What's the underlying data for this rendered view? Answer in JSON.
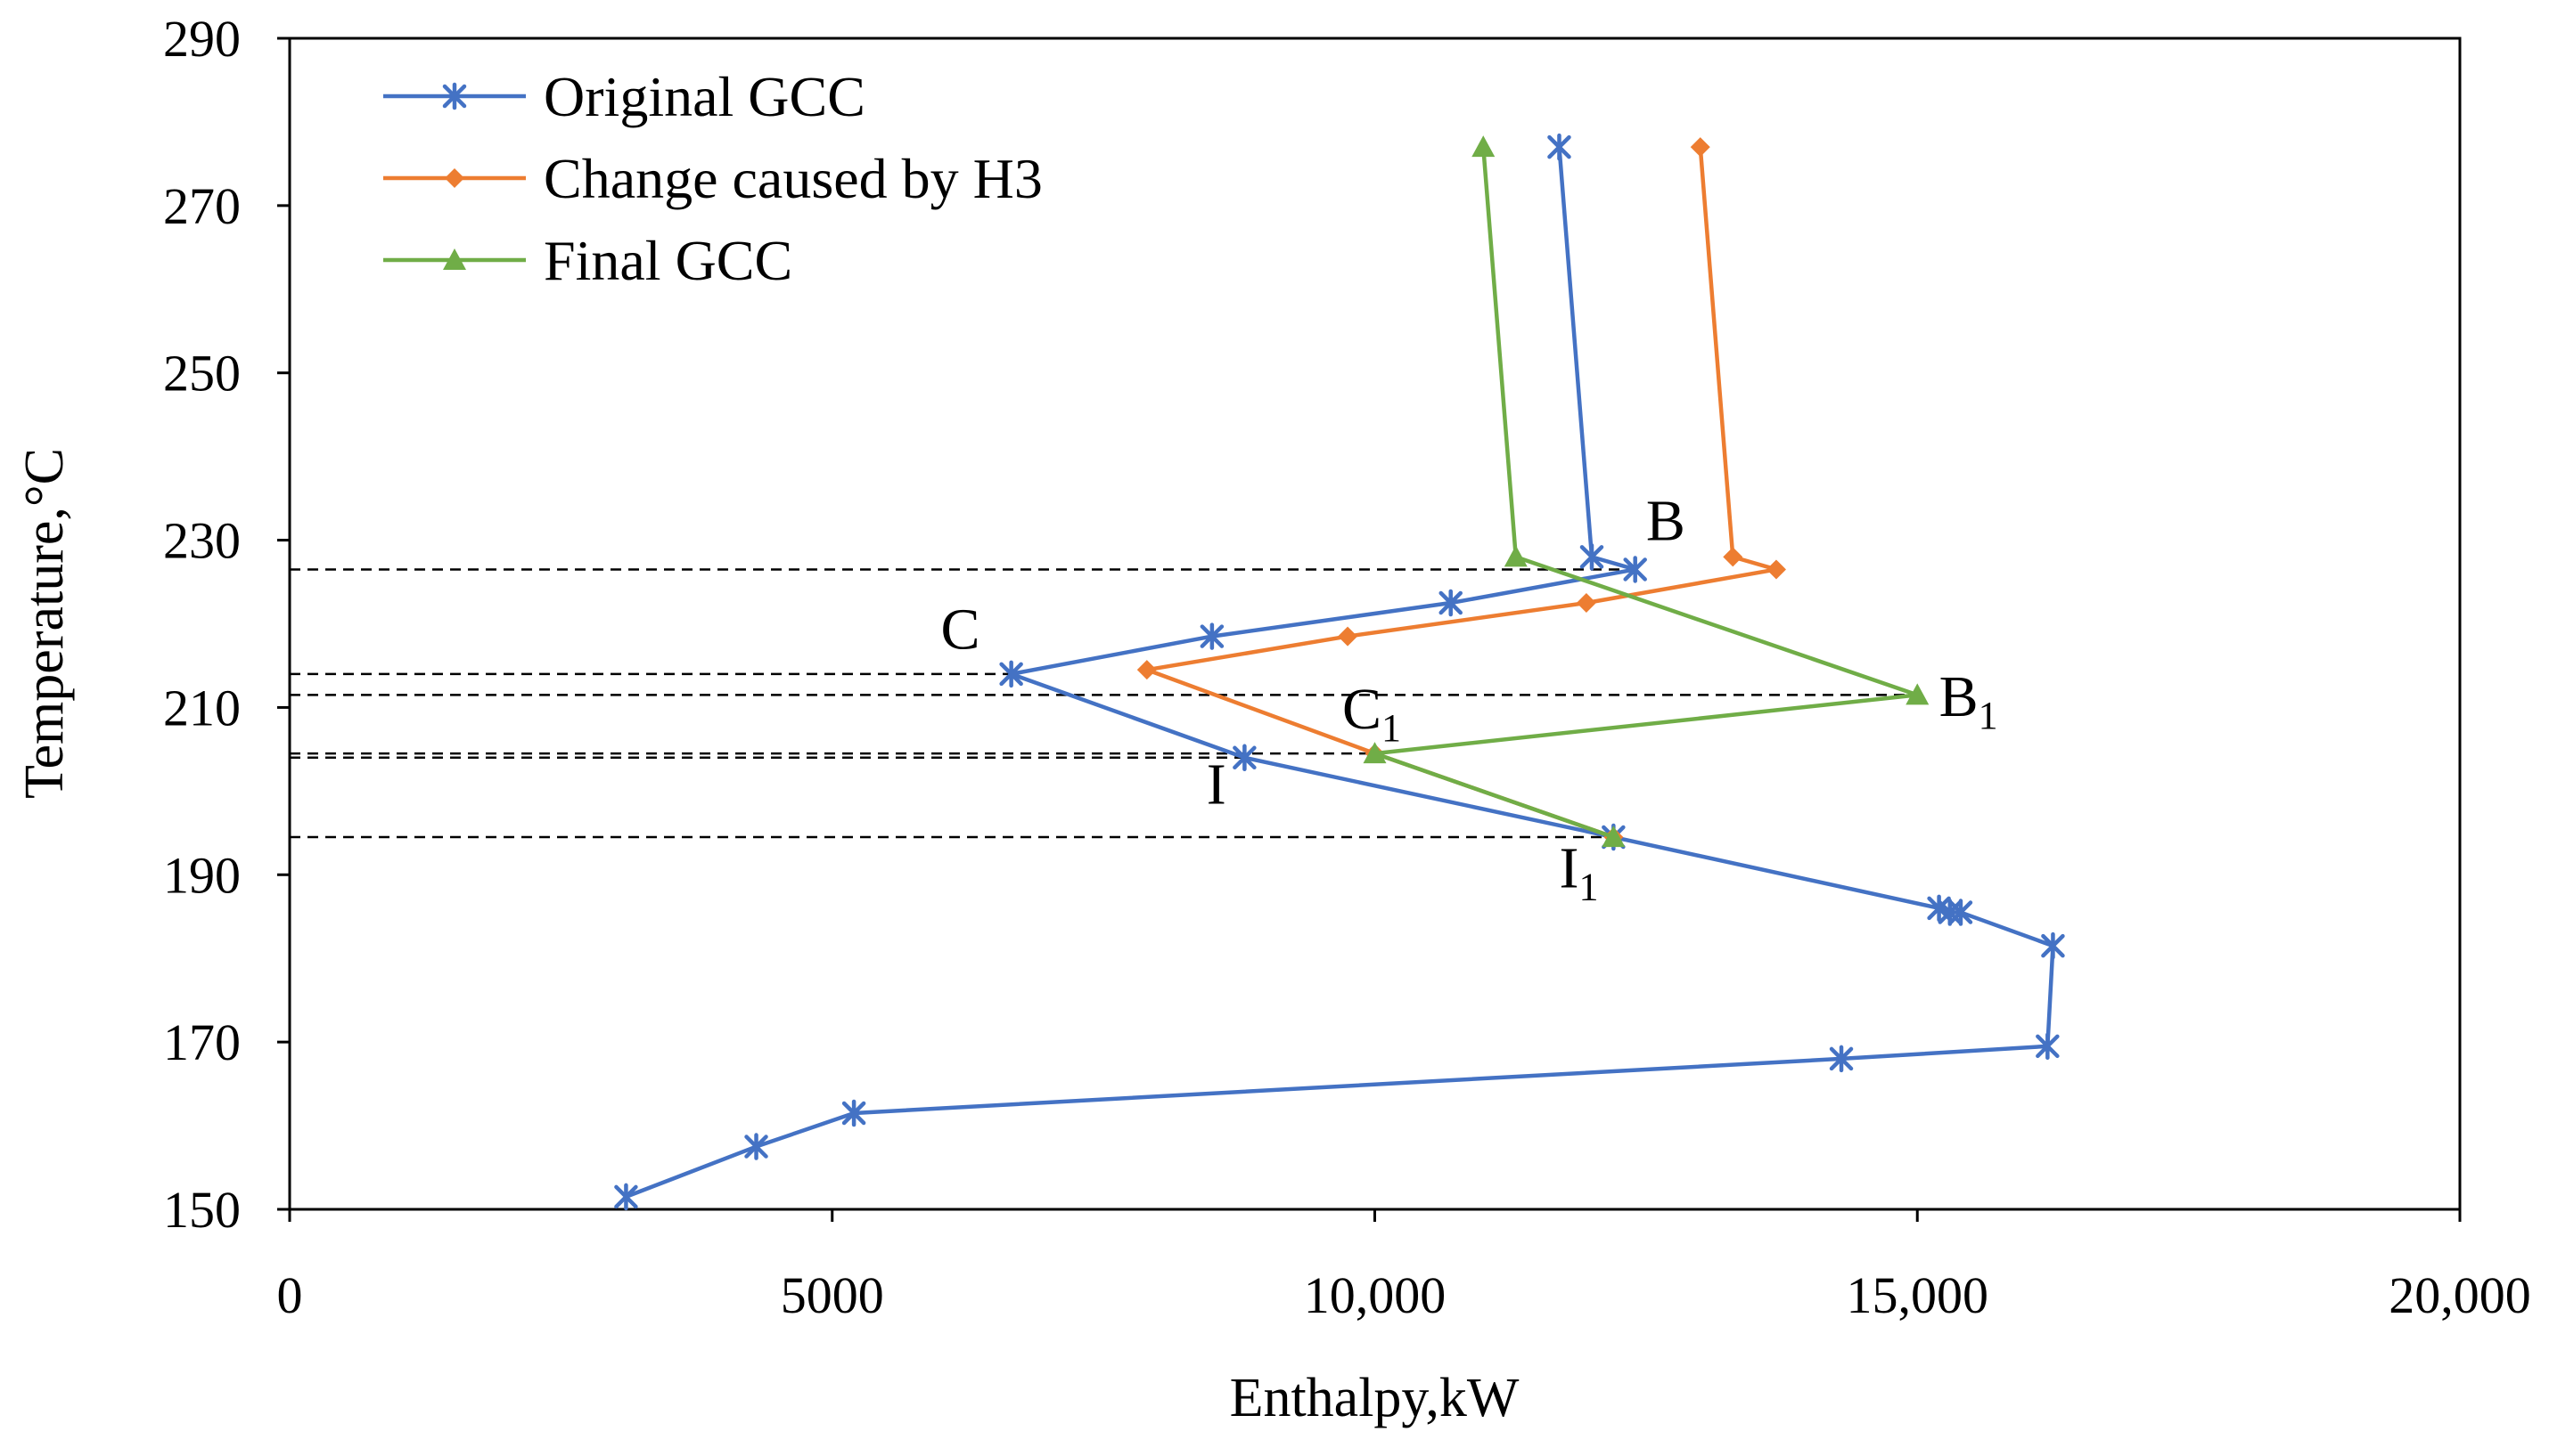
{
  "chart_data": {
    "type": "line",
    "title": "",
    "xlabel": "Enthalpy,kW",
    "ylabel": "Temperature,°C",
    "xlim": [
      0,
      20000
    ],
    "ylim": [
      150,
      290
    ],
    "xticks": [
      0,
      5000,
      10000,
      15000,
      20000
    ],
    "xtick_labels": [
      "0",
      "5000",
      "10,000",
      "15,000",
      "20,000"
    ],
    "yticks": [
      150,
      170,
      190,
      210,
      230,
      250,
      270,
      290
    ],
    "ytick_labels": [
      "150",
      "170",
      "190",
      "210",
      "230",
      "250",
      "270",
      "290"
    ],
    "grid": false,
    "legend_position": "top-left",
    "series": [
      {
        "name": "Original GCC",
        "color": "#4472C4",
        "marker": "asterisk",
        "points": [
          [
            3100,
            151.5
          ],
          [
            4300,
            157.5
          ],
          [
            5200,
            161.5
          ],
          [
            14300,
            168
          ],
          [
            16200,
            169.5
          ],
          [
            16250,
            181.5
          ],
          [
            15400,
            185.5
          ],
          [
            15300,
            185.5
          ],
          [
            15200,
            186
          ],
          [
            12200,
            194.5
          ],
          [
            8800,
            204
          ],
          [
            6650,
            214
          ],
          [
            8500,
            218.5
          ],
          [
            10700,
            222.5
          ],
          [
            12400,
            226.5
          ],
          [
            12000,
            228
          ],
          [
            11700,
            277
          ]
        ]
      },
      {
        "name": "Change caused by H3",
        "color": "#ED7D31",
        "marker": "diamond",
        "points": [
          [
            12200,
            194.5
          ],
          [
            10000,
            204.5
          ],
          [
            7900,
            214.5
          ],
          [
            9750,
            218.5
          ],
          [
            11950,
            222.5
          ],
          [
            13700,
            226.5
          ],
          [
            13300,
            228
          ],
          [
            13000,
            277
          ]
        ]
      },
      {
        "name": "Final GCC",
        "color": "#70AD47",
        "marker": "triangle",
        "points": [
          [
            12200,
            194.5
          ],
          [
            10000,
            204.5
          ],
          [
            15000,
            211.5
          ],
          [
            11300,
            228
          ],
          [
            11000,
            277
          ]
        ]
      }
    ],
    "reference_lines": [
      {
        "y": 226.5,
        "x_end": 12400
      },
      {
        "y": 214,
        "x_end": 6650
      },
      {
        "y": 211.5,
        "x_end": 15000
      },
      {
        "y": 204.5,
        "x_end": 10000
      },
      {
        "y": 204,
        "x_end": 8800
      },
      {
        "y": 194.5,
        "x_end": 12200
      }
    ],
    "annotations": [
      {
        "id": "B",
        "text": "B",
        "sub": "",
        "x": 12500,
        "y": 230
      },
      {
        "id": "C",
        "text": "C",
        "sub": "",
        "x": 6000,
        "y": 217
      },
      {
        "id": "B1",
        "text": "B",
        "sub": "1",
        "x": 15200,
        "y": 209
      },
      {
        "id": "C1",
        "text": "C",
        "sub": "1",
        "x": 9700,
        "y": 207.5
      },
      {
        "id": "I",
        "text": "I",
        "sub": "",
        "x": 8450,
        "y": 198.5
      },
      {
        "id": "I1",
        "text": "I",
        "sub": "1",
        "x": 11700,
        "y": 188.5
      }
    ]
  }
}
